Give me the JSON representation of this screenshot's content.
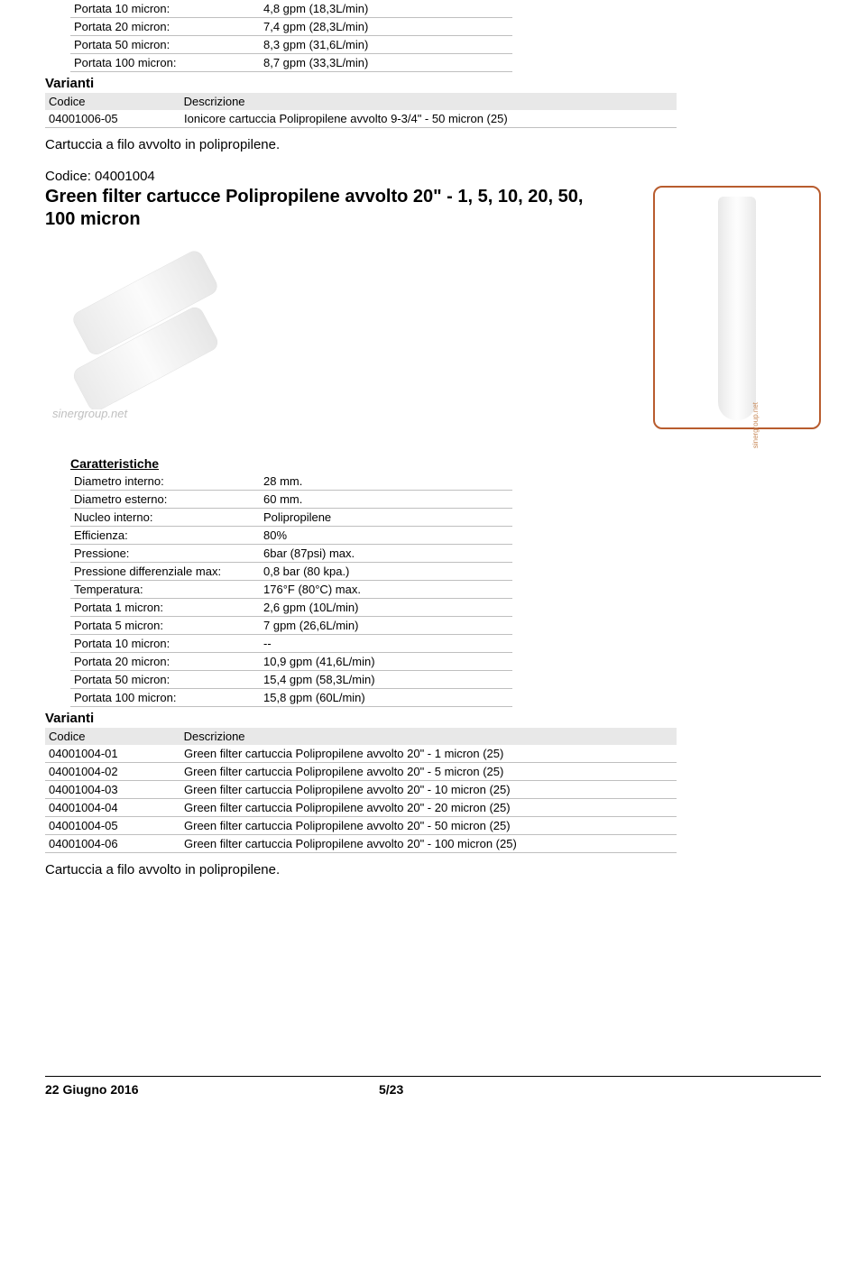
{
  "top_specs": [
    {
      "label": "Portata 10 micron:",
      "value": "4,8 gpm (18,3L/min)"
    },
    {
      "label": "Portata 20 micron:",
      "value": "7,4 gpm (28,3L/min)"
    },
    {
      "label": "Portata 50 micron:",
      "value": "8,3 gpm (31,6L/min)"
    },
    {
      "label": "Portata 100 micron:",
      "value": "8,7 gpm (33,3L/min)"
    }
  ],
  "top_variants": {
    "heading": "Varianti",
    "col1": "Codice",
    "col2": "Descrizione",
    "rows": [
      {
        "code": "04001006-05",
        "desc": "Ionicore cartuccia Polipropilene avvolto 9-3/4\" - 50 micron (25)"
      }
    ]
  },
  "top_desc": "Cartuccia a filo avvolto in polipropilene.",
  "product": {
    "code_label": "Codice: 04001004",
    "title": "Green filter cartucce Polipropilene avvolto 20\" - 1, 5, 10, 20, 50, 100 micron"
  },
  "watermark": "sinergroup.net",
  "side_text": "sinergroup.net",
  "char_heading": "Caratteristiche",
  "specs": [
    {
      "label": "Diametro interno:",
      "value": "28 mm."
    },
    {
      "label": "Diametro esterno:",
      "value": "60 mm."
    },
    {
      "label": "Nucleo interno:",
      "value": "Polipropilene"
    },
    {
      "label": "Efficienza:",
      "value": "80%"
    },
    {
      "label": "Pressione:",
      "value": "6bar (87psi) max."
    },
    {
      "label": "Pressione differenziale max:",
      "value": "0,8 bar (80 kpa.)"
    },
    {
      "label": "Temperatura:",
      "value": "176°F (80°C) max."
    },
    {
      "label": "Portata 1 micron:",
      "value": "2,6 gpm (10L/min)"
    },
    {
      "label": "Portata 5 micron:",
      "value": "7 gpm (26,6L/min)"
    },
    {
      "label": "Portata 10 micron:",
      "value": "--"
    },
    {
      "label": "Portata 20 micron:",
      "value": "10,9 gpm (41,6L/min)"
    },
    {
      "label": "Portata 50 micron:",
      "value": "15,4 gpm (58,3L/min)"
    },
    {
      "label": "Portata 100 micron:",
      "value": "15,8 gpm (60L/min)"
    }
  ],
  "variants": {
    "heading": "Varianti",
    "col1": "Codice",
    "col2": "Descrizione",
    "rows": [
      {
        "code": "04001004-01",
        "desc": "Green filter cartuccia Polipropilene avvolto 20\" - 1 micron (25)"
      },
      {
        "code": "04001004-02",
        "desc": "Green filter cartuccia Polipropilene avvolto 20\" - 5 micron (25)"
      },
      {
        "code": "04001004-03",
        "desc": "Green filter cartuccia Polipropilene avvolto 20\" - 10 micron (25)"
      },
      {
        "code": "04001004-04",
        "desc": "Green filter cartuccia Polipropilene avvolto 20\" - 20 micron (25)"
      },
      {
        "code": "04001004-05",
        "desc": "Green filter cartuccia Polipropilene avvolto 20\" - 50 micron (25)"
      },
      {
        "code": "04001004-06",
        "desc": "Green filter cartuccia Polipropilene avvolto 20\" - 100 micron (25)"
      }
    ]
  },
  "bottom_desc": "Cartuccia a filo avvolto in polipropilene.",
  "footer": {
    "date": "22 Giugno 2016",
    "page": "5/23"
  },
  "colors": {
    "border_orange": "#b85c2e",
    "rule_gray": "#bfbfbf",
    "header_bg": "#e8e8e8",
    "text": "#000000",
    "watermark": "#c0c0c0"
  }
}
